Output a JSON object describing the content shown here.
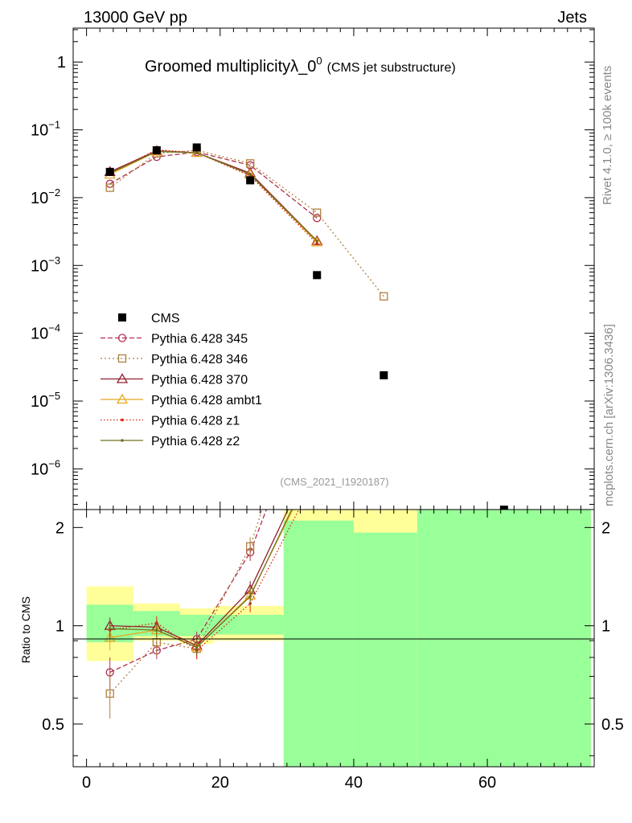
{
  "header": {
    "left": "13000 GeV pp",
    "right": "Jets"
  },
  "side": {
    "rivet": "Rivet 4.1.0, ≥ 100k events",
    "mcplots": "mcplots.cern.ch [arXiv:1306.3436]"
  },
  "chart_data": {
    "type": "line",
    "title": "Groomed multiplicity",
    "title_symbol": "λ_0",
    "title_sup": "0",
    "subtitle": "(CMS jet substructure)",
    "analysis": "(CMS_2021_I1920187)",
    "ratio_ylabel": "Ratio to CMS",
    "xlim": [
      -2,
      76
    ],
    "main_ylim_log10": [
      -6.6,
      0.5
    ],
    "ratio_ylim": [
      0.37,
      2.27
    ],
    "x_ticks": [
      "0",
      "20",
      "40",
      "60"
    ],
    "main_y_ticks": [
      {
        "base": "1",
        "exp": ""
      },
      {
        "base": "10",
        "exp": "−1"
      },
      {
        "base": "10",
        "exp": "−2"
      },
      {
        "base": "10",
        "exp": "−3"
      },
      {
        "base": "10",
        "exp": "−4"
      },
      {
        "base": "10",
        "exp": "−5"
      },
      {
        "base": "10",
        "exp": "−6"
      }
    ],
    "ratio_y_ticks": [
      "0.5",
      "1",
      "2"
    ],
    "x": [
      3.5,
      10.5,
      16.5,
      24.5,
      34.5,
      44.5,
      62.5
    ],
    "data": {
      "name": "CMS",
      "values": [
        0.024,
        0.05,
        0.055,
        0.018,
        0.00072,
        2.4e-05,
        2.5e-07
      ]
    },
    "bands": [
      {
        "x0": 0,
        "x1": 7,
        "yellow": [
          0.78,
          1.32
        ],
        "green": [
          0.89,
          1.16
        ]
      },
      {
        "x0": 7,
        "x1": 14,
        "yellow": [
          0.9,
          1.17
        ],
        "green": [
          0.93,
          1.11
        ]
      },
      {
        "x0": 14,
        "x1": 19,
        "yellow": [
          0.88,
          1.13
        ],
        "green": [
          0.93,
          1.08
        ]
      },
      {
        "x0": 19,
        "x1": 29.5,
        "yellow": [
          0.9,
          1.15
        ],
        "green": [
          0.94,
          1.08
        ]
      },
      {
        "x0": 29.5,
        "x1": 40,
        "yellow": [
          0.37,
          2.27
        ],
        "green": [
          0.37,
          2.1
        ]
      },
      {
        "x0": 40,
        "x1": 49.5,
        "yellow": [
          0.37,
          2.27
        ],
        "green": [
          0.37,
          1.93
        ]
      },
      {
        "x0": 49.5,
        "x1": 75.5,
        "yellow": [
          0.37,
          2.27
        ],
        "green": [
          0.37,
          2.27
        ]
      }
    ],
    "series": [
      {
        "name": "Pythia 6.428 345",
        "color": "#b03050",
        "dash": "6,3",
        "marker": "circle",
        "x": [
          3.5,
          10.5,
          16.5,
          24.5,
          34.5
        ],
        "values": [
          0.016,
          0.04,
          0.047,
          0.03,
          0.005
        ],
        "ratio": [
          0.72,
          0.84,
          0.91,
          1.68,
          5.8
        ],
        "ratio_err": [
          0.08,
          0.05,
          0.05,
          0.1,
          0.6
        ]
      },
      {
        "name": "Pythia 6.428 346",
        "color": "#b08040",
        "dash": "2,3",
        "marker": "square",
        "x": [
          3.5,
          10.5,
          16.5,
          24.5,
          34.5,
          44.5
        ],
        "values": [
          0.014,
          0.045,
          0.05,
          0.032,
          0.006,
          0.00035
        ],
        "ratio": [
          0.62,
          0.89,
          0.85,
          1.75,
          7.5,
          14.0
        ],
        "ratio_err": [
          0.1,
          0.08,
          0.06,
          0.12,
          0.8,
          2.0
        ]
      },
      {
        "name": "Pythia 6.428 370",
        "color": "#902030",
        "dash": "",
        "marker": "triangle",
        "x": [
          3.5,
          10.5,
          16.5,
          24.5,
          34.5
        ],
        "values": [
          0.024,
          0.049,
          0.046,
          0.023,
          0.0023
        ],
        "ratio": [
          1.0,
          0.99,
          0.87,
          1.29,
          3.5
        ],
        "ratio_err": [
          0.06,
          0.05,
          0.05,
          0.08,
          0.4
        ]
      },
      {
        "name": "Pythia 6.428 ambt1",
        "color": "#e8a820",
        "dash": "",
        "marker": "triangle",
        "x": [
          3.5,
          10.5,
          16.5,
          24.5,
          34.5
        ],
        "values": [
          0.022,
          0.048,
          0.046,
          0.022,
          0.0022
        ],
        "ratio": [
          0.92,
          0.97,
          0.86,
          1.24,
          3.2
        ],
        "ratio_err": [
          0.08,
          0.05,
          0.05,
          0.08,
          0.4
        ]
      },
      {
        "name": "Pythia 6.428 z1",
        "color": "#dd2010",
        "dash": "1.5,2.5",
        "marker": "dot",
        "x": [
          3.5,
          10.5,
          16.5,
          24.5,
          34.5
        ],
        "values": [
          0.023,
          0.051,
          0.046,
          0.021,
          0.0021
        ],
        "ratio": [
          0.97,
          1.02,
          0.84,
          1.17,
          2.9
        ],
        "ratio_err": [
          0.06,
          0.05,
          0.05,
          0.07,
          0.4
        ]
      },
      {
        "name": "Pythia 6.428 z2",
        "color": "#707020",
        "dash": "",
        "marker": "dot",
        "x": [
          3.5,
          10.5,
          16.5,
          24.5,
          34.5
        ],
        "values": [
          0.023,
          0.048,
          0.046,
          0.022,
          0.0023
        ],
        "ratio": [
          0.98,
          0.97,
          0.86,
          1.23,
          3.3
        ],
        "ratio_err": [
          0.06,
          0.05,
          0.05,
          0.08,
          0.4
        ]
      }
    ]
  }
}
